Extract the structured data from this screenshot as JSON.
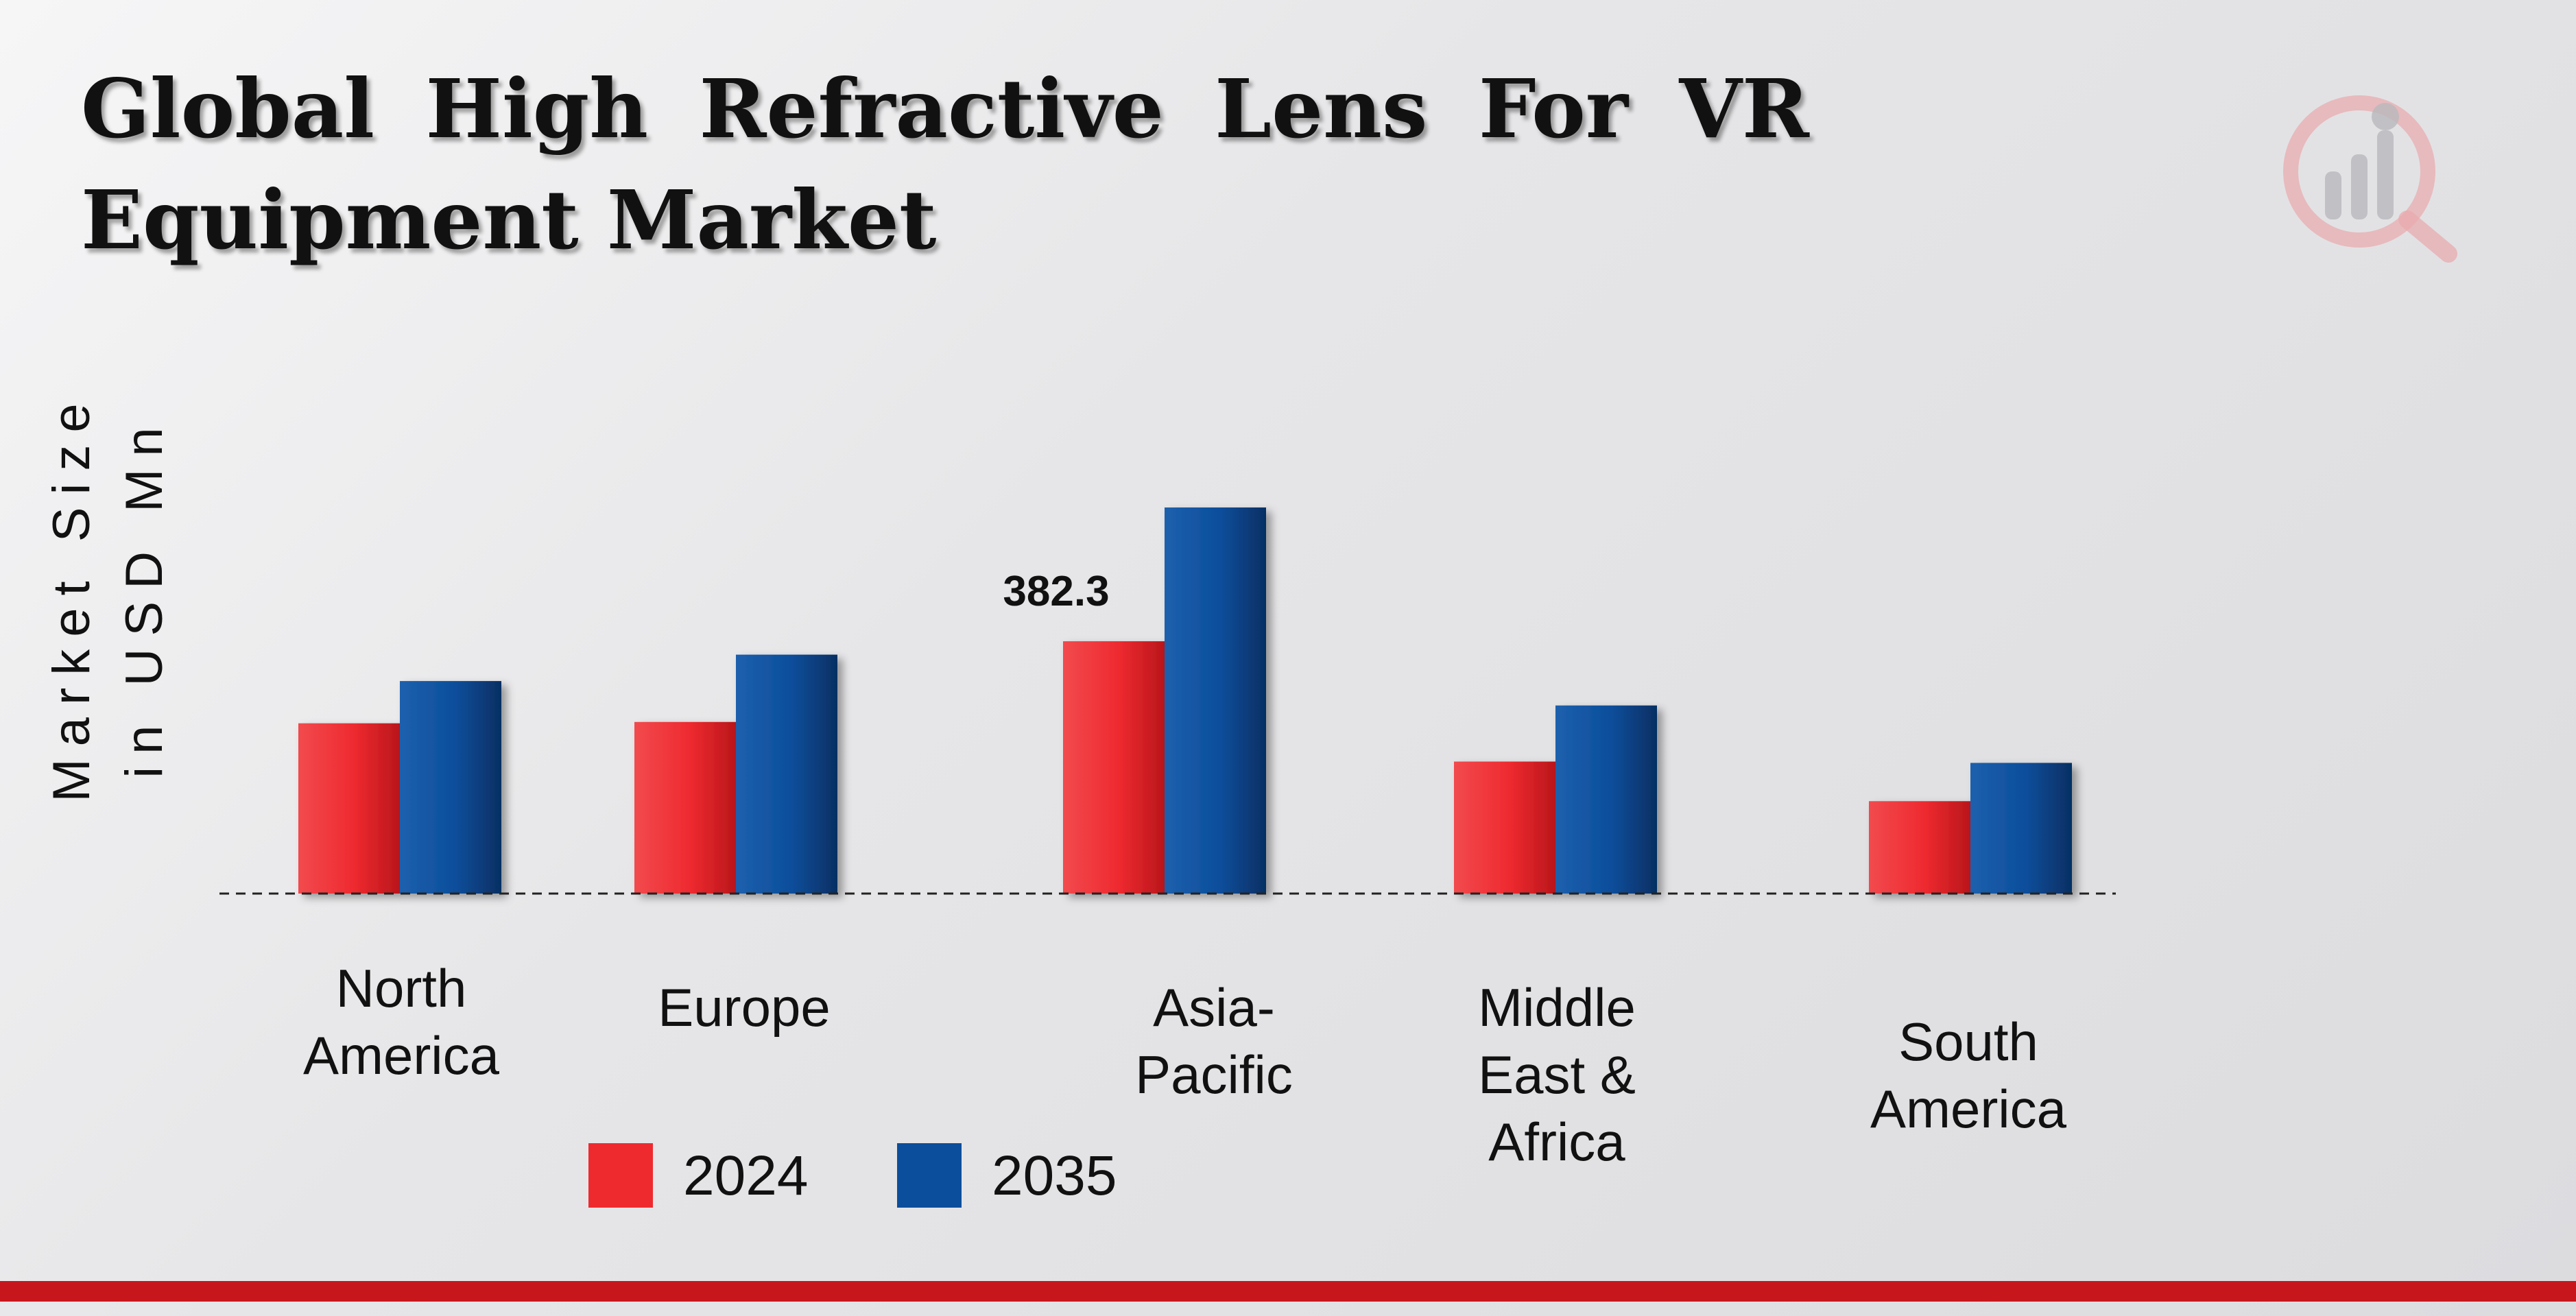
{
  "title": "Global High Refractive Lens For VR Equipment Market",
  "colors": {
    "series_2024": "#ee2a2f",
    "series_2035": "#0b4e9b",
    "accent": "#c8161d"
  },
  "logo": {
    "icon": "bar-chart-magnifier-icon"
  },
  "chart_data": {
    "type": "bar",
    "title": "Global High Refractive Lens For VR Equipment Market",
    "xlabel": "",
    "ylabel": "Market Size in USD Mn",
    "categories": [
      "North America",
      "Europe",
      "Asia-Pacific",
      "Middle East & Africa",
      "South America"
    ],
    "series": [
      {
        "name": "2024",
        "values": [
          258,
          260,
          382.3,
          200,
          140
        ]
      },
      {
        "name": "2035",
        "values": [
          322,
          362,
          585,
          285,
          198
        ]
      }
    ],
    "data_labels": [
      {
        "series": "2024",
        "category": "Asia-Pacific",
        "text": "382.3"
      }
    ],
    "ylim": [
      0,
      650
    ],
    "grid": false,
    "baseline": "dashed",
    "legend": {
      "position": "bottom-left",
      "entries": [
        "2024",
        "2035"
      ]
    }
  }
}
